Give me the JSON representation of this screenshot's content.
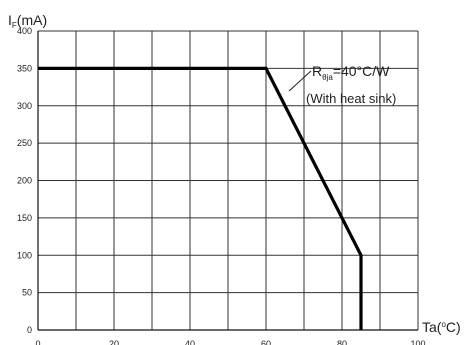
{
  "chart_data": {
    "type": "line",
    "y_axis": {
      "label_symbol": "I",
      "label_subscript": "F",
      "label_unit": "(mA)",
      "ticks": [
        "0",
        "50",
        "100",
        "150",
        "200",
        "250",
        "300",
        "350",
        "400"
      ],
      "ylim": [
        0,
        400
      ]
    },
    "x_axis": {
      "label_text": "Ta(",
      "label_degree": "o",
      "label_unit": "C)",
      "ticks": [
        "0",
        "20",
        "40",
        "60",
        "80",
        "100"
      ],
      "xlim": [
        0,
        100
      ]
    },
    "grid": true,
    "series": [
      {
        "x": [
          0,
          60,
          85,
          85
        ],
        "y": [
          350,
          350,
          100,
          0
        ]
      }
    ],
    "annotation": {
      "symbol": "R",
      "subscript": "θja",
      "value": "=40°C/W",
      "note": "(With heat sink)"
    }
  }
}
